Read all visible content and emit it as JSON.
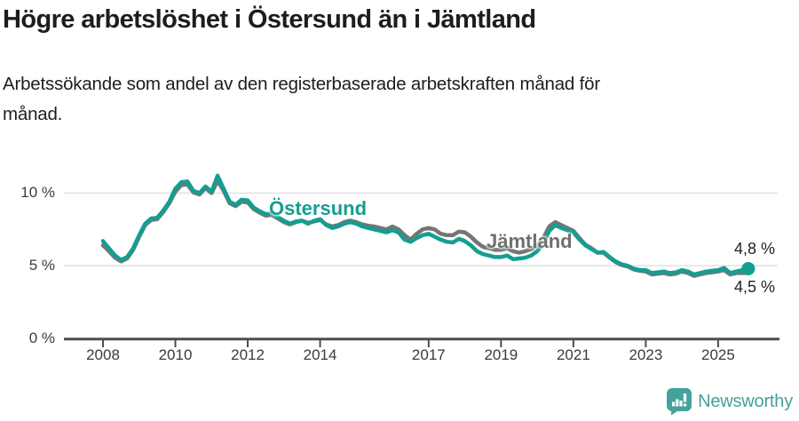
{
  "header": {
    "title": "Högre arbetslöshet i Östersund än i Jämtland",
    "subtitle_lines": [
      "Arbetssökande som andel av den registerbaserade arbetskraften månad för",
      "månad."
    ]
  },
  "annotations": {
    "ostersund_label": "Östersund",
    "jamtland_label": "Jämtland",
    "end_value_ostersund": "4,8 %",
    "end_value_jamtland": "4,5 %"
  },
  "footer": {
    "brand": "Newsworthy",
    "logo_icon": "newsworthy-badge-bar-chart-exclamation"
  },
  "colors": {
    "ostersund": "#149e92",
    "jamtland": "#757575",
    "jamtland_label": "#6f6f6f",
    "grid": "#e3e3e3",
    "axis": "#4d4d4d",
    "text": "#1d1d1b",
    "tick_text": "#3b3b3b",
    "brand_teal": "#44a29a"
  },
  "chart_data": {
    "type": "line",
    "title": "Högre arbetslöshet i Östersund än i Jämtland",
    "xlabel": "",
    "ylabel": "Arbetssökande som andel av den registerbaserade arbetskraften",
    "unit": "%",
    "grid": "horizontal",
    "legend_position": "inline-labels",
    "xlim": [
      2006.9,
      2026.65
    ],
    "ylim": [
      0,
      11.9
    ],
    "xticks": [
      2008,
      2010,
      2012,
      2014,
      2017,
      2019,
      2021,
      2023,
      2025
    ],
    "xtick_labels": [
      "2008",
      "2010",
      "2012",
      "2014",
      "2017",
      "2019",
      "2021",
      "2023",
      "2025"
    ],
    "yticks": [
      0,
      5,
      10
    ],
    "ytick_labels": [
      "0 %",
      "5 %",
      "10 %"
    ],
    "x_start_year": 2008.0,
    "x_step_years": 0.16667,
    "series": [
      {
        "name": "Jämtland",
        "color": "#757575",
        "end_value": 4.5,
        "end_value_label": "4,5 %",
        "values": [
          6.4,
          6.0,
          5.55,
          5.3,
          5.5,
          6.1,
          7.0,
          7.8,
          8.15,
          8.2,
          8.7,
          9.3,
          10.1,
          10.55,
          10.6,
          10.05,
          9.9,
          10.35,
          10.0,
          10.85,
          10.15,
          9.3,
          9.1,
          9.4,
          9.35,
          8.9,
          8.65,
          8.45,
          8.5,
          8.25,
          8.0,
          7.85,
          8.0,
          8.1,
          7.95,
          8.05,
          8.15,
          7.85,
          7.7,
          7.8,
          8.0,
          8.1,
          8.0,
          7.85,
          7.75,
          7.7,
          7.6,
          7.5,
          7.7,
          7.5,
          7.1,
          6.8,
          7.2,
          7.5,
          7.6,
          7.5,
          7.2,
          7.1,
          7.1,
          7.35,
          7.3,
          7.0,
          6.6,
          6.3,
          6.2,
          6.1,
          6.1,
          6.2,
          6.0,
          5.9,
          6.0,
          6.15,
          6.4,
          6.9,
          7.7,
          8.0,
          7.8,
          7.6,
          7.4,
          6.9,
          6.45,
          6.2,
          5.9,
          5.9,
          5.55,
          5.25,
          5.05,
          4.95,
          4.75,
          4.65,
          4.6,
          4.4,
          4.45,
          4.5,
          4.4,
          4.45,
          4.6,
          4.5,
          4.3,
          4.4,
          4.5,
          4.55,
          4.6,
          4.7,
          4.4,
          4.5,
          4.5,
          4.5
        ]
      },
      {
        "name": "Östersund",
        "color": "#149e92",
        "end_value": 4.8,
        "end_value_label": "4,8 %",
        "end_dot": true,
        "values": [
          6.7,
          6.2,
          5.7,
          5.4,
          5.6,
          6.2,
          7.1,
          7.9,
          8.25,
          8.3,
          8.8,
          9.4,
          10.3,
          10.75,
          10.8,
          10.15,
          10.0,
          10.45,
          10.1,
          11.2,
          10.3,
          9.4,
          9.2,
          9.55,
          9.5,
          9.0,
          8.75,
          8.55,
          8.6,
          8.35,
          8.1,
          7.9,
          8.05,
          8.1,
          7.9,
          8.1,
          8.2,
          7.8,
          7.6,
          7.7,
          7.9,
          8.0,
          7.9,
          7.7,
          7.6,
          7.5,
          7.4,
          7.3,
          7.45,
          7.3,
          6.8,
          6.65,
          6.9,
          7.1,
          7.2,
          7.0,
          6.8,
          6.65,
          6.6,
          6.85,
          6.7,
          6.4,
          6.0,
          5.8,
          5.7,
          5.6,
          5.6,
          5.7,
          5.45,
          5.5,
          5.55,
          5.7,
          6.0,
          6.5,
          7.4,
          7.8,
          7.6,
          7.45,
          7.3,
          6.8,
          6.4,
          6.15,
          5.9,
          5.95,
          5.6,
          5.3,
          5.1,
          5.0,
          4.8,
          4.7,
          4.7,
          4.5,
          4.55,
          4.6,
          4.5,
          4.55,
          4.7,
          4.6,
          4.4,
          4.5,
          4.6,
          4.65,
          4.7,
          4.85,
          4.5,
          4.6,
          4.7,
          4.8
        ]
      }
    ]
  }
}
